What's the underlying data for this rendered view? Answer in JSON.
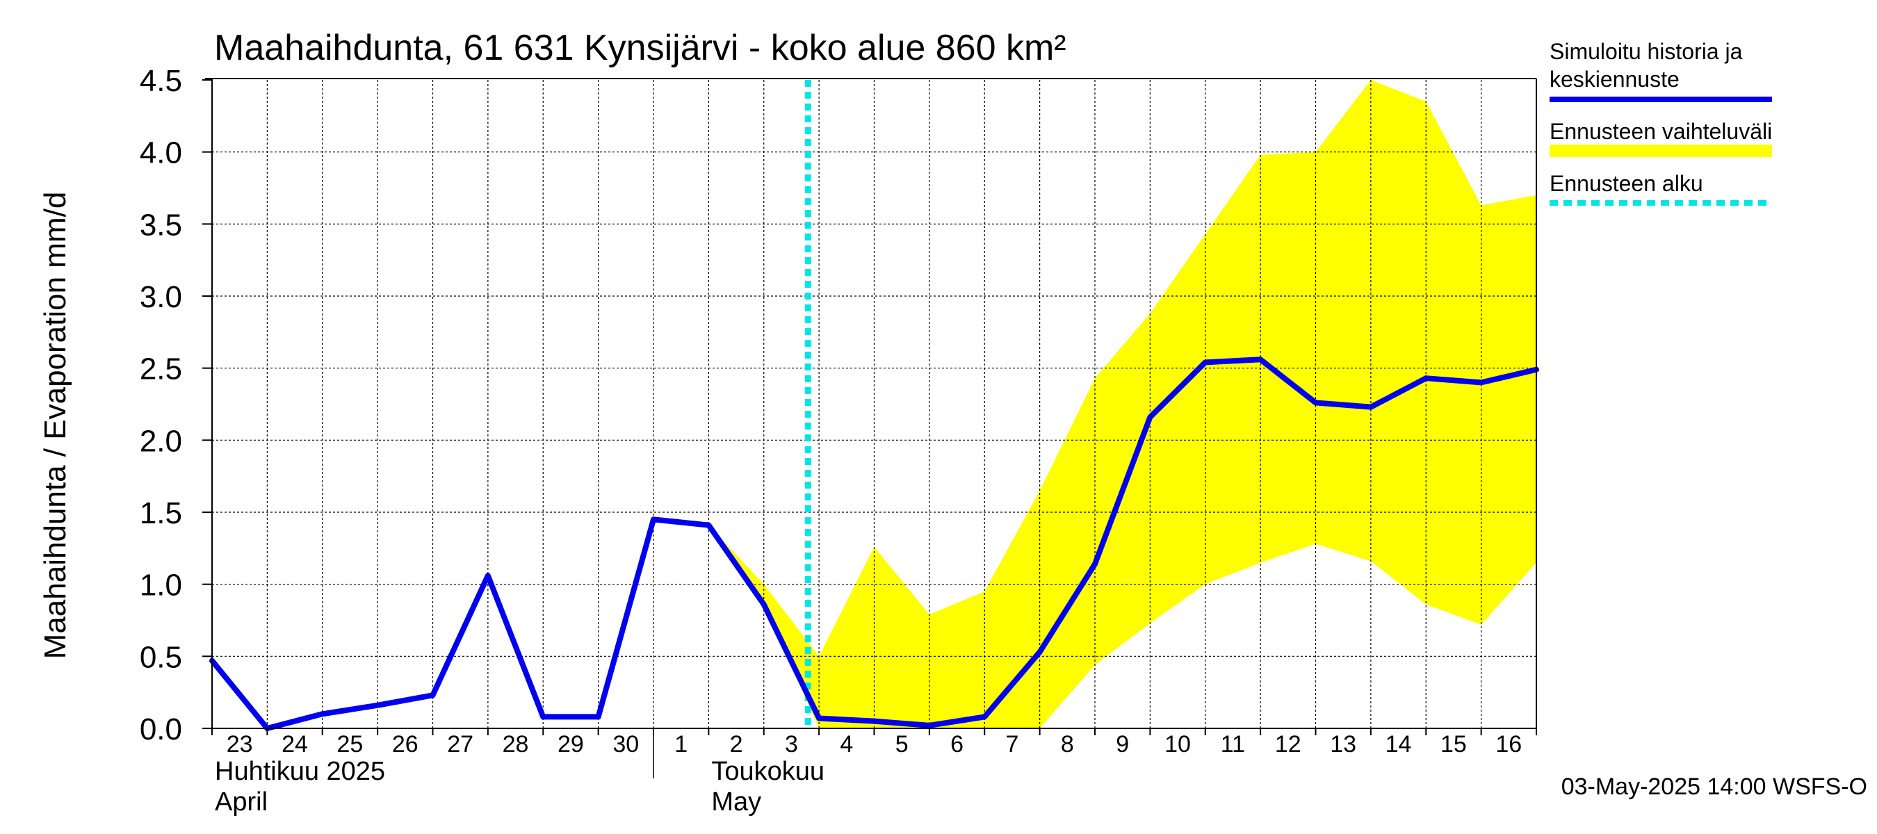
{
  "chart_data": {
    "type": "line",
    "title": "Maahaihdunta, 61 631 Kynsijärvi - koko alue 860 km²",
    "ylabel": "Maahaihdunta / Evaporation   mm/d",
    "xlabel": "",
    "ylim": [
      0,
      4.5
    ],
    "yticks": [
      "0.0",
      "0.5",
      "1.0",
      "1.5",
      "2.0",
      "2.5",
      "3.0",
      "3.5",
      "4.0",
      "4.5"
    ],
    "grid": true,
    "x_days": [
      "23",
      "24",
      "25",
      "26",
      "27",
      "28",
      "29",
      "30",
      "1",
      "2",
      "3",
      "4",
      "5",
      "6",
      "7",
      "8",
      "9",
      "10",
      "11",
      "12",
      "13",
      "14",
      "15",
      "16"
    ],
    "month_labels": [
      {
        "line1": "Huhtikuu  2025",
        "line2": "April"
      },
      {
        "line1": "Toukokuu",
        "line2": "May"
      }
    ],
    "forecast_start_day": 10.8,
    "legend_position": "right",
    "legend": [
      {
        "line1": "Simuloitu historia ja",
        "line2": "keskiennuste",
        "color": "#0000ee",
        "style": "solid"
      },
      {
        "line1": "Ennusteen vaihteluväli",
        "line2": "",
        "color": "#ffff00",
        "style": "band"
      },
      {
        "line1": "Ennusteen alku",
        "line2": "",
        "color": "#00e5e5",
        "style": "dashed"
      }
    ],
    "series": [
      {
        "name": "Simuloitu historia ja keskiennuste",
        "color": "#0000ee",
        "points": [
          [
            0,
            0.47
          ],
          [
            1,
            0.0
          ],
          [
            2,
            0.1
          ],
          [
            3,
            0.16
          ],
          [
            4,
            0.23
          ],
          [
            5,
            1.06
          ],
          [
            6,
            0.08
          ],
          [
            7,
            0.08
          ],
          [
            8,
            1.45
          ],
          [
            9,
            1.41
          ],
          [
            10,
            0.86
          ],
          [
            11,
            0.07
          ],
          [
            12,
            0.05
          ],
          [
            13,
            0.02
          ],
          [
            14,
            0.08
          ],
          [
            15,
            0.53
          ],
          [
            16,
            1.14
          ],
          [
            17,
            2.16
          ],
          [
            18,
            2.54
          ],
          [
            19,
            2.56
          ],
          [
            20,
            2.26
          ],
          [
            21,
            2.23
          ],
          [
            22,
            2.43
          ],
          [
            23,
            2.4
          ],
          [
            24,
            2.49
          ]
        ]
      }
    ],
    "band": {
      "name": "Ennusteen vaihteluväli",
      "color": "#ffff00",
      "upper": [
        [
          9,
          1.41
        ],
        [
          10,
          1.0
        ],
        [
          11,
          0.5
        ],
        [
          12,
          1.26
        ],
        [
          13,
          0.79
        ],
        [
          14,
          0.95
        ],
        [
          15,
          1.65
        ],
        [
          16,
          2.43
        ],
        [
          17,
          2.88
        ],
        [
          18,
          3.43
        ],
        [
          19,
          3.98
        ],
        [
          20,
          4.0
        ],
        [
          21,
          4.5
        ],
        [
          22,
          4.35
        ],
        [
          23,
          3.63
        ],
        [
          24,
          3.7
        ]
      ],
      "lower": [
        [
          9,
          1.41
        ],
        [
          10,
          0.86
        ],
        [
          11,
          0.0
        ],
        [
          12,
          0.0
        ],
        [
          13,
          0.0
        ],
        [
          14,
          0.0
        ],
        [
          15,
          0.0
        ],
        [
          16,
          0.44
        ],
        [
          17,
          0.73
        ],
        [
          18,
          1.0
        ],
        [
          19,
          1.15
        ],
        [
          20,
          1.28
        ],
        [
          21,
          1.16
        ],
        [
          22,
          0.86
        ],
        [
          23,
          0.72
        ],
        [
          24,
          1.15
        ]
      ]
    }
  },
  "timestamp": "03-May-2025 14:00 WSFS-O"
}
